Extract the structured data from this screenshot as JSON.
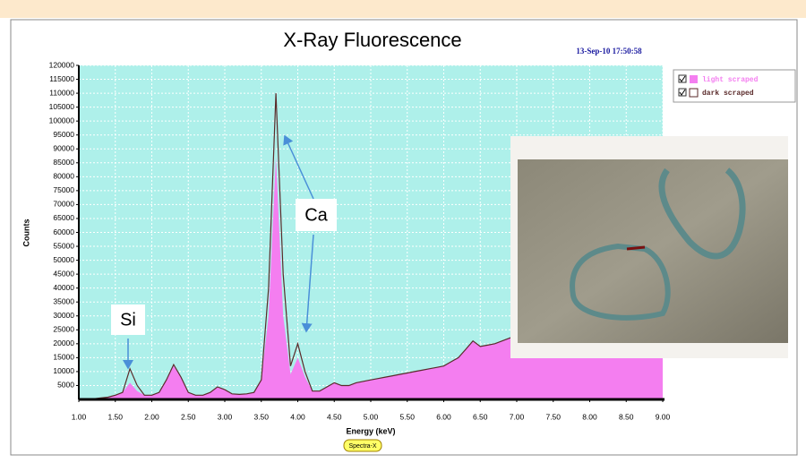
{
  "chart_data": {
    "type": "area",
    "title": "X-Ray Fluorescence",
    "timestamp": "13-Sep-10 17:50:58",
    "x_label": "Energy (keV)",
    "y_label": "Counts",
    "badge": "Spectra-X",
    "annotations": [
      "Si",
      "Ca"
    ],
    "legend": "top-right",
    "grid": true,
    "xlim": [
      1,
      9
    ],
    "ylim": [
      0,
      120000
    ],
    "xticks": [
      {
        "value": 1,
        "label": "1.00"
      },
      {
        "value": 1.5,
        "label": "1.50"
      },
      {
        "value": 2,
        "label": "2.00"
      },
      {
        "value": 2.5,
        "label": "2.50"
      },
      {
        "value": 3,
        "label": "3.00"
      },
      {
        "value": 3.5,
        "label": "3.50"
      },
      {
        "value": 4,
        "label": "4.00"
      },
      {
        "value": 4.5,
        "label": "4.50"
      },
      {
        "value": 5,
        "label": "5.00"
      },
      {
        "value": 5.5,
        "label": "5.50"
      },
      {
        "value": 6,
        "label": "6.00"
      },
      {
        "value": 6.5,
        "label": "6.50"
      },
      {
        "value": 7,
        "label": "7.00"
      },
      {
        "value": 7.5,
        "label": "7.50"
      },
      {
        "value": 8,
        "label": "8.00"
      },
      {
        "value": 8.5,
        "label": "8.50"
      },
      {
        "value": 9,
        "label": "9.00"
      }
    ],
    "yticks": [
      5000,
      10000,
      15000,
      20000,
      25000,
      30000,
      35000,
      40000,
      45000,
      50000,
      55000,
      60000,
      65000,
      70000,
      75000,
      80000,
      85000,
      90000,
      95000,
      100000,
      105000,
      110000,
      115000,
      120000
    ],
    "x": [
      1.0,
      1.1,
      1.2,
      1.3,
      1.4,
      1.5,
      1.6,
      1.7,
      1.8,
      1.9,
      2.0,
      2.1,
      2.2,
      2.3,
      2.4,
      2.5,
      2.6,
      2.7,
      2.8,
      2.9,
      3.0,
      3.1,
      3.2,
      3.3,
      3.4,
      3.5,
      3.6,
      3.7,
      3.8,
      3.9,
      4.0,
      4.1,
      4.2,
      4.3,
      4.4,
      4.5,
      4.6,
      4.7,
      4.8,
      4.9,
      5.0,
      5.1,
      5.2,
      5.3,
      5.4,
      5.5,
      5.6,
      5.7,
      5.8,
      5.9,
      6.0,
      6.1,
      6.2,
      6.3,
      6.4,
      6.5,
      6.6,
      6.7,
      6.8,
      6.9,
      7.0,
      7.1,
      7.2,
      7.3,
      7.4,
      7.5,
      7.6,
      7.7,
      7.8,
      7.9,
      8.0,
      8.1,
      8.2,
      8.3,
      8.4,
      8.5,
      8.6,
      8.7,
      8.8,
      8.9,
      9.0
    ],
    "series": [
      {
        "name": "light scraped",
        "color": "#f47ef0",
        "values": [
          0,
          0,
          200,
          500,
          800,
          1500,
          2500,
          6000,
          3000,
          1500,
          1500,
          2500,
          7000,
          12000,
          8000,
          2500,
          1500,
          1500,
          2500,
          4500,
          3500,
          2000,
          1800,
          2000,
          2500,
          7000,
          30000,
          87000,
          30000,
          9000,
          15000,
          8000,
          3000,
          3000,
          4500,
          6000,
          5000,
          5000,
          6000,
          6500,
          7000,
          7500,
          8000,
          8500,
          9000,
          9500,
          10000,
          10500,
          11000,
          11500,
          12000,
          13500,
          15000,
          18000,
          21000,
          19000,
          19500,
          20000,
          21000,
          22000,
          23000,
          24000,
          25000,
          26000,
          26000,
          25000,
          24000,
          23000,
          22000,
          21000,
          20500,
          20000,
          19500,
          19000,
          18500,
          18000,
          17500,
          17000,
          16500,
          16000,
          15500
        ]
      },
      {
        "name": "dark scraped",
        "color": "#5a2a2a",
        "values": [
          0,
          0,
          200,
          500,
          800,
          1500,
          2500,
          11000,
          5000,
          1500,
          1500,
          2500,
          7000,
          12500,
          8000,
          2500,
          1500,
          1500,
          2500,
          4500,
          3500,
          2000,
          1800,
          2000,
          2500,
          7000,
          40000,
          110000,
          45000,
          12000,
          20000,
          10000,
          3000,
          3000,
          4500,
          6000,
          5000,
          5000,
          6000,
          6500,
          7000,
          7500,
          8000,
          8500,
          9000,
          9500,
          10000,
          10500,
          11000,
          11500,
          12000,
          13500,
          15000,
          18000,
          21000,
          19000,
          19500,
          20000,
          21000,
          22000,
          23000,
          24000,
          25000,
          26000,
          26000,
          25000,
          24000,
          23000,
          22000,
          21000,
          20500,
          20000,
          19500,
          19000,
          18500,
          18000,
          17500,
          17000,
          16500,
          16000,
          15500
        ]
      }
    ]
  }
}
